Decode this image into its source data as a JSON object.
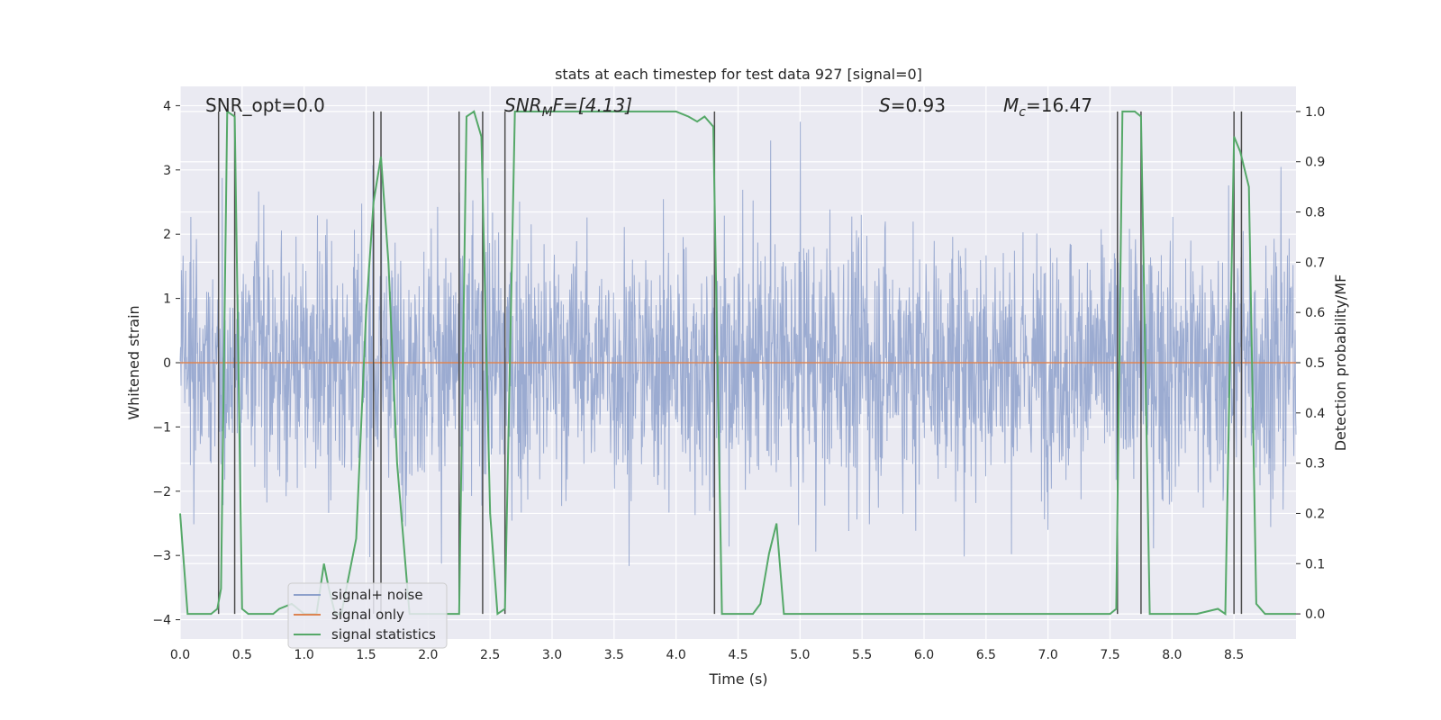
{
  "chart_data": {
    "type": "line",
    "title": "stats at each timestep for test data 927 [signal=0]",
    "xlabel": "Time (s)",
    "ylabel": "Whitened strain",
    "y2label": "Detection probability/MF",
    "xlim": [
      0,
      9
    ],
    "ylim": [
      -4.3,
      4.3
    ],
    "y2lim": [
      -0.05,
      1.05
    ],
    "xticks": [
      "0.0",
      "0.5",
      "1.0",
      "1.5",
      "2.0",
      "2.5",
      "3.0",
      "3.5",
      "4.0",
      "4.5",
      "5.0",
      "5.5",
      "6.0",
      "6.5",
      "7.0",
      "7.5",
      "8.0",
      "8.5"
    ],
    "yticks": [
      "−4",
      "−3",
      "−2",
      "−1",
      "0",
      "1",
      "2",
      "3",
      "4"
    ],
    "y2ticks": [
      "0.0",
      "0.1",
      "0.2",
      "0.3",
      "0.4",
      "0.5",
      "0.6",
      "0.7",
      "0.8",
      "0.9",
      "1.0"
    ],
    "annotations": {
      "snr_opt": "SNR_opt=0.0",
      "snr_mf_pre": "SNR",
      "snr_mf_sub": "M",
      "snr_mf_post": "F=[4.13]",
      "s_italic": "S",
      "s_post": "=0.93",
      "mc_italic": "M",
      "mc_sub": "c",
      "mc_post": "=16.47"
    },
    "legend": {
      "placement": "lower-left",
      "entries": [
        "signal+ noise",
        "signal only",
        "signal statistics"
      ]
    },
    "colors": {
      "noise": "#8da0cb",
      "signal_only": "#dd8452",
      "statistics": "#55a868",
      "vlines": "#4d4d4d",
      "background": "#eaeaf2",
      "grid": "#ffffff"
    },
    "series": [
      {
        "name": "signal+ noise",
        "note_axis": "left",
        "sampling": "dense noise envelope, ±~2.3 typical, peaks to ±3.7",
        "envelope_upper_typical": 2.3,
        "envelope_lower_typical": -2.3
      },
      {
        "name": "signal only",
        "axis": "left",
        "x": [
          0,
          9
        ],
        "y": [
          0,
          0
        ]
      },
      {
        "name": "signal statistics",
        "axis": "right",
        "x": [
          0.0,
          0.06,
          0.12,
          0.25,
          0.3,
          0.33,
          0.38,
          0.44,
          0.5,
          0.55,
          0.62,
          0.75,
          0.8,
          0.9,
          1.0,
          1.1,
          1.16,
          1.2,
          1.25,
          1.3,
          1.42,
          1.5,
          1.56,
          1.62,
          1.68,
          1.75,
          1.85,
          2.0,
          2.1,
          2.2,
          2.25,
          2.31,
          2.37,
          2.43,
          2.5,
          2.56,
          2.62,
          2.7,
          3.0,
          3.5,
          4.0,
          4.1,
          4.17,
          4.23,
          4.3,
          4.37,
          4.43,
          4.5,
          4.62,
          4.68,
          4.75,
          4.81,
          4.87,
          4.94,
          5.0,
          6.0,
          7.0,
          7.5,
          7.55,
          7.6,
          7.65,
          7.7,
          7.75,
          7.82,
          7.9,
          8.0,
          8.2,
          8.37,
          8.43,
          8.5,
          8.55,
          8.62,
          8.68,
          8.75,
          8.8,
          9.0
        ],
        "y": [
          0.2,
          0.0,
          0.0,
          0.0,
          0.01,
          0.05,
          1.0,
          0.99,
          0.01,
          0.0,
          0.0,
          0.0,
          0.01,
          0.02,
          0.0,
          0.0,
          0.1,
          0.05,
          0.0,
          0.0,
          0.15,
          0.6,
          0.82,
          0.91,
          0.7,
          0.3,
          0.0,
          0.0,
          0.0,
          0.0,
          0.0,
          0.99,
          1.0,
          0.95,
          0.2,
          0.0,
          0.01,
          1.0,
          1.0,
          1.0,
          1.0,
          0.99,
          0.98,
          0.99,
          0.97,
          0.0,
          0.0,
          0.0,
          0.0,
          0.02,
          0.12,
          0.18,
          0.0,
          0.0,
          0.0,
          0.0,
          0.0,
          0.0,
          0.01,
          1.0,
          1.0,
          1.0,
          0.99,
          0.0,
          0.0,
          0.0,
          0.0,
          0.01,
          0.0,
          0.95,
          0.92,
          0.85,
          0.02,
          0.0,
          0.0,
          0.0
        ]
      }
    ],
    "vertical_lines_x": [
      0.31,
      0.44,
      1.56,
      1.62,
      2.25,
      2.44,
      2.62,
      4.31,
      7.56,
      7.75,
      8.5,
      8.56
    ]
  }
}
